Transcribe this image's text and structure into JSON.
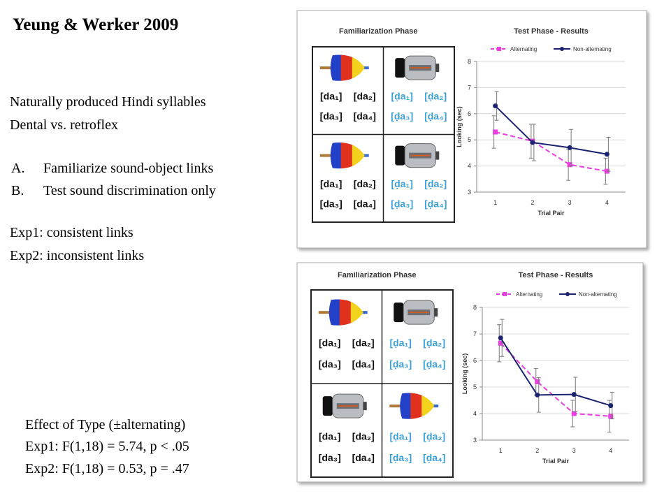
{
  "slide": {
    "title": "Yeung & Werker 2009",
    "lines": [
      "Naturally produced Hindi syllables",
      "Dental vs. retroflex"
    ],
    "list": [
      {
        "marker": "A.",
        "text": "Familiarize sound-object links"
      },
      {
        "marker": "B.",
        "text": "Test sound discrimination only"
      }
    ],
    "exps": [
      "Exp1: consistent links",
      "Exp2: inconsistent links"
    ],
    "effects": [
      "Effect of Type (±alternating)",
      "Exp1: F(1,18) = 5.74, p < .05",
      "Exp2: F(1,18) = 0.53, p = .47"
    ]
  },
  "figures": [
    {
      "title": "Familiarization Phase",
      "cells": [
        [
          "[da₁]",
          "[da₂]",
          "[da₃]",
          "[da₄]"
        ],
        [
          "[ḍa₁]",
          "[ḍa₂]",
          "[ḍa₃]",
          "[ḍa₄]"
        ],
        [
          "[da₁]",
          "[da₂]",
          "[da₃]",
          "[da₄]"
        ],
        [
          "[ḍa₁]",
          "[ḍa₂]",
          "[ḍa₃]",
          "[ḍa₄]"
        ]
      ]
    },
    {
      "title": "Familiarization Phase",
      "cells": [
        [
          "[da₁]",
          "[da₂]",
          "[da₃]",
          "[da₄]"
        ],
        [
          "[ḍa₁]",
          "[ḍa₂]",
          "[ḍa₃]",
          "[ḍa₄]"
        ],
        [
          "[da₁]",
          "[da₂]",
          "[da₃]",
          "[da₄]"
        ],
        [
          "[ḍa₁]",
          "[ḍa₂]",
          "[ḍa₃]",
          "[ḍa₄]"
        ]
      ]
    }
  ],
  "chart_data": [
    {
      "type": "line",
      "title": "Test Phase - Results",
      "x_label": "Trial Pair",
      "y_label": "Looking (sec)",
      "categories": [
        "1",
        "2",
        "3",
        "4"
      ],
      "ylim": [
        3,
        8
      ],
      "yticks": [
        3,
        4,
        5,
        6,
        7,
        8
      ],
      "grid": true,
      "series": [
        {
          "name": "Alternating",
          "color": "#e83fe0",
          "marker": "square",
          "dash": true,
          "values": [
            5.3,
            4.95,
            4.05,
            3.8
          ],
          "errors": [
            0.62,
            0.65,
            0.6,
            0.5
          ]
        },
        {
          "name": "Non-alternating",
          "color": "#1c2472",
          "marker": "circle",
          "dash": false,
          "values": [
            6.3,
            4.9,
            4.7,
            4.45
          ],
          "errors": [
            0.55,
            0.7,
            0.7,
            0.65
          ]
        }
      ]
    },
    {
      "type": "line",
      "title": "Test Phase - Results",
      "x_label": "Trial Pair",
      "y_label": "Looking (sec)",
      "categories": [
        "1",
        "2",
        "3",
        "4"
      ],
      "ylim": [
        3,
        8
      ],
      "yticks": [
        3,
        4,
        5,
        6,
        7,
        8
      ],
      "grid": true,
      "series": [
        {
          "name": "Alternating",
          "color": "#e83fe0",
          "marker": "square",
          "dash": true,
          "values": [
            6.65,
            5.2,
            4.0,
            3.9
          ],
          "errors": [
            0.7,
            0.5,
            0.5,
            0.6
          ]
        },
        {
          "name": "Non-alternating",
          "color": "#1c2472",
          "marker": "circle",
          "dash": false,
          "values": [
            6.85,
            4.7,
            4.72,
            4.3
          ],
          "errors": [
            0.7,
            0.65,
            0.65,
            0.5
          ]
        }
      ]
    }
  ]
}
